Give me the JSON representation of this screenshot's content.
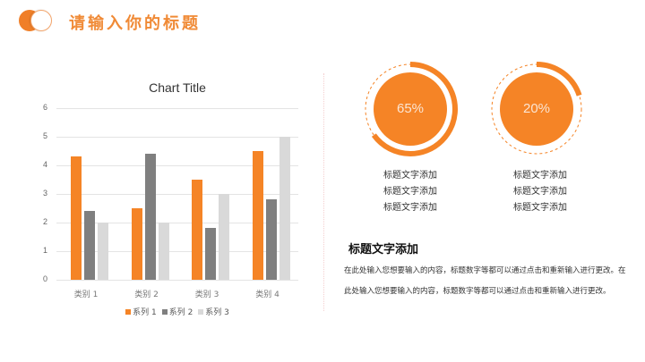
{
  "header": {
    "title": "请输入你的标题",
    "logo_icon": "toggle-circles-icon"
  },
  "colors": {
    "accent": "#f58426",
    "series1": "#f58426",
    "series2": "#7f7f7f",
    "series3": "#d9d9d9",
    "grid": "#e4e4e4"
  },
  "chart_data": {
    "type": "bar",
    "title": "Chart Title",
    "categories": [
      "类别 1",
      "类别 2",
      "类别 3",
      "类别 4"
    ],
    "series": [
      {
        "name": "系列 1",
        "values": [
          4.3,
          2.5,
          3.5,
          4.5
        ]
      },
      {
        "name": "系列 2",
        "values": [
          2.4,
          4.4,
          1.8,
          2.8
        ]
      },
      {
        "name": "系列 3",
        "values": [
          2,
          2,
          3,
          5
        ]
      }
    ],
    "xlabel": "",
    "ylabel": "",
    "ylim": [
      0,
      6
    ],
    "yticks": [
      "0",
      "1",
      "2",
      "3",
      "4",
      "5",
      "6"
    ],
    "grid": true,
    "legend_position": "bottom"
  },
  "rings": [
    {
      "value": "65%",
      "percent": 65,
      "captions": [
        "标题文字添加",
        "标题文字添加",
        "标题文字添加"
      ]
    },
    {
      "value": "20%",
      "percent": 20,
      "captions": [
        "标题文字添加",
        "标题文字添加",
        "标题文字添加"
      ]
    }
  ],
  "section": {
    "title": "标题文字添加",
    "body": "在此处输入您想要输入的内容，标题数字等都可以通过点击和重新输入进行更改。在此处输入您想要输入的内容，标题数字等都可以通过点击和重新输入进行更改。"
  }
}
